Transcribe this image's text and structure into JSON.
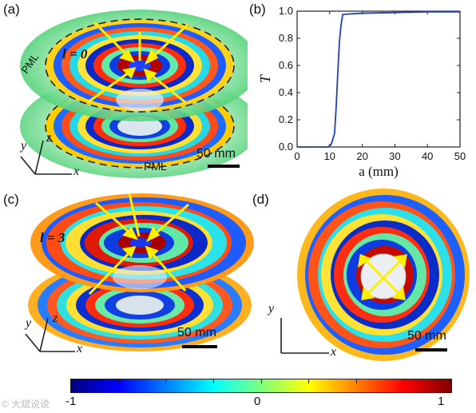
{
  "panels": {
    "a": {
      "label": "(a)",
      "mode_label": "l = 0",
      "pml_top": "PML",
      "pml_bottom": "PML",
      "scale": "50 mm",
      "axes": {
        "x": "x",
        "y": "y",
        "z": "z"
      }
    },
    "b": {
      "label": "(b)",
      "ylabel": "T",
      "xlabel": "a (mm)"
    },
    "c": {
      "label": "(c)",
      "mode_label": "l = 3",
      "scale": "50 mm",
      "axes": {
        "x": "x",
        "y": "y",
        "z": "z"
      }
    },
    "d": {
      "label": "(d)",
      "scale": "50 mm",
      "axes": {
        "x": "x",
        "y": "y"
      }
    }
  },
  "colorbar": {
    "min_label": "-1",
    "mid_label": "0",
    "max_label": "1",
    "stops": [
      "#00007f",
      "#0000ff",
      "#007fff",
      "#00ffff",
      "#7fff7f",
      "#ffff00",
      "#ff7f00",
      "#ff0000",
      "#7f0000"
    ]
  },
  "watermark": "© 大斌说说",
  "chart_data": {
    "type": "line",
    "title": "",
    "xlabel": "a (mm)",
    "ylabel": "T",
    "xlim": [
      0,
      50
    ],
    "ylim": [
      0,
      1.0
    ],
    "xticks": [
      "0",
      "10",
      "20",
      "30",
      "40",
      "50"
    ],
    "yticks": [
      "0.0",
      "0.2",
      "0.4",
      "0.6",
      "0.8",
      "1.0"
    ],
    "series": [
      {
        "color": "#1f3fbf",
        "x": [
          0,
          9.5,
          10.5,
          11.0,
          11.5,
          12.0,
          12.5,
          13.0,
          13.5,
          14.0,
          15,
          20,
          30,
          40,
          50
        ],
        "y": [
          0,
          0,
          0.02,
          0.06,
          0.1,
          0.3,
          0.55,
          0.78,
          0.9,
          0.975,
          0.978,
          0.985,
          0.99,
          0.995,
          0.995
        ]
      }
    ]
  }
}
